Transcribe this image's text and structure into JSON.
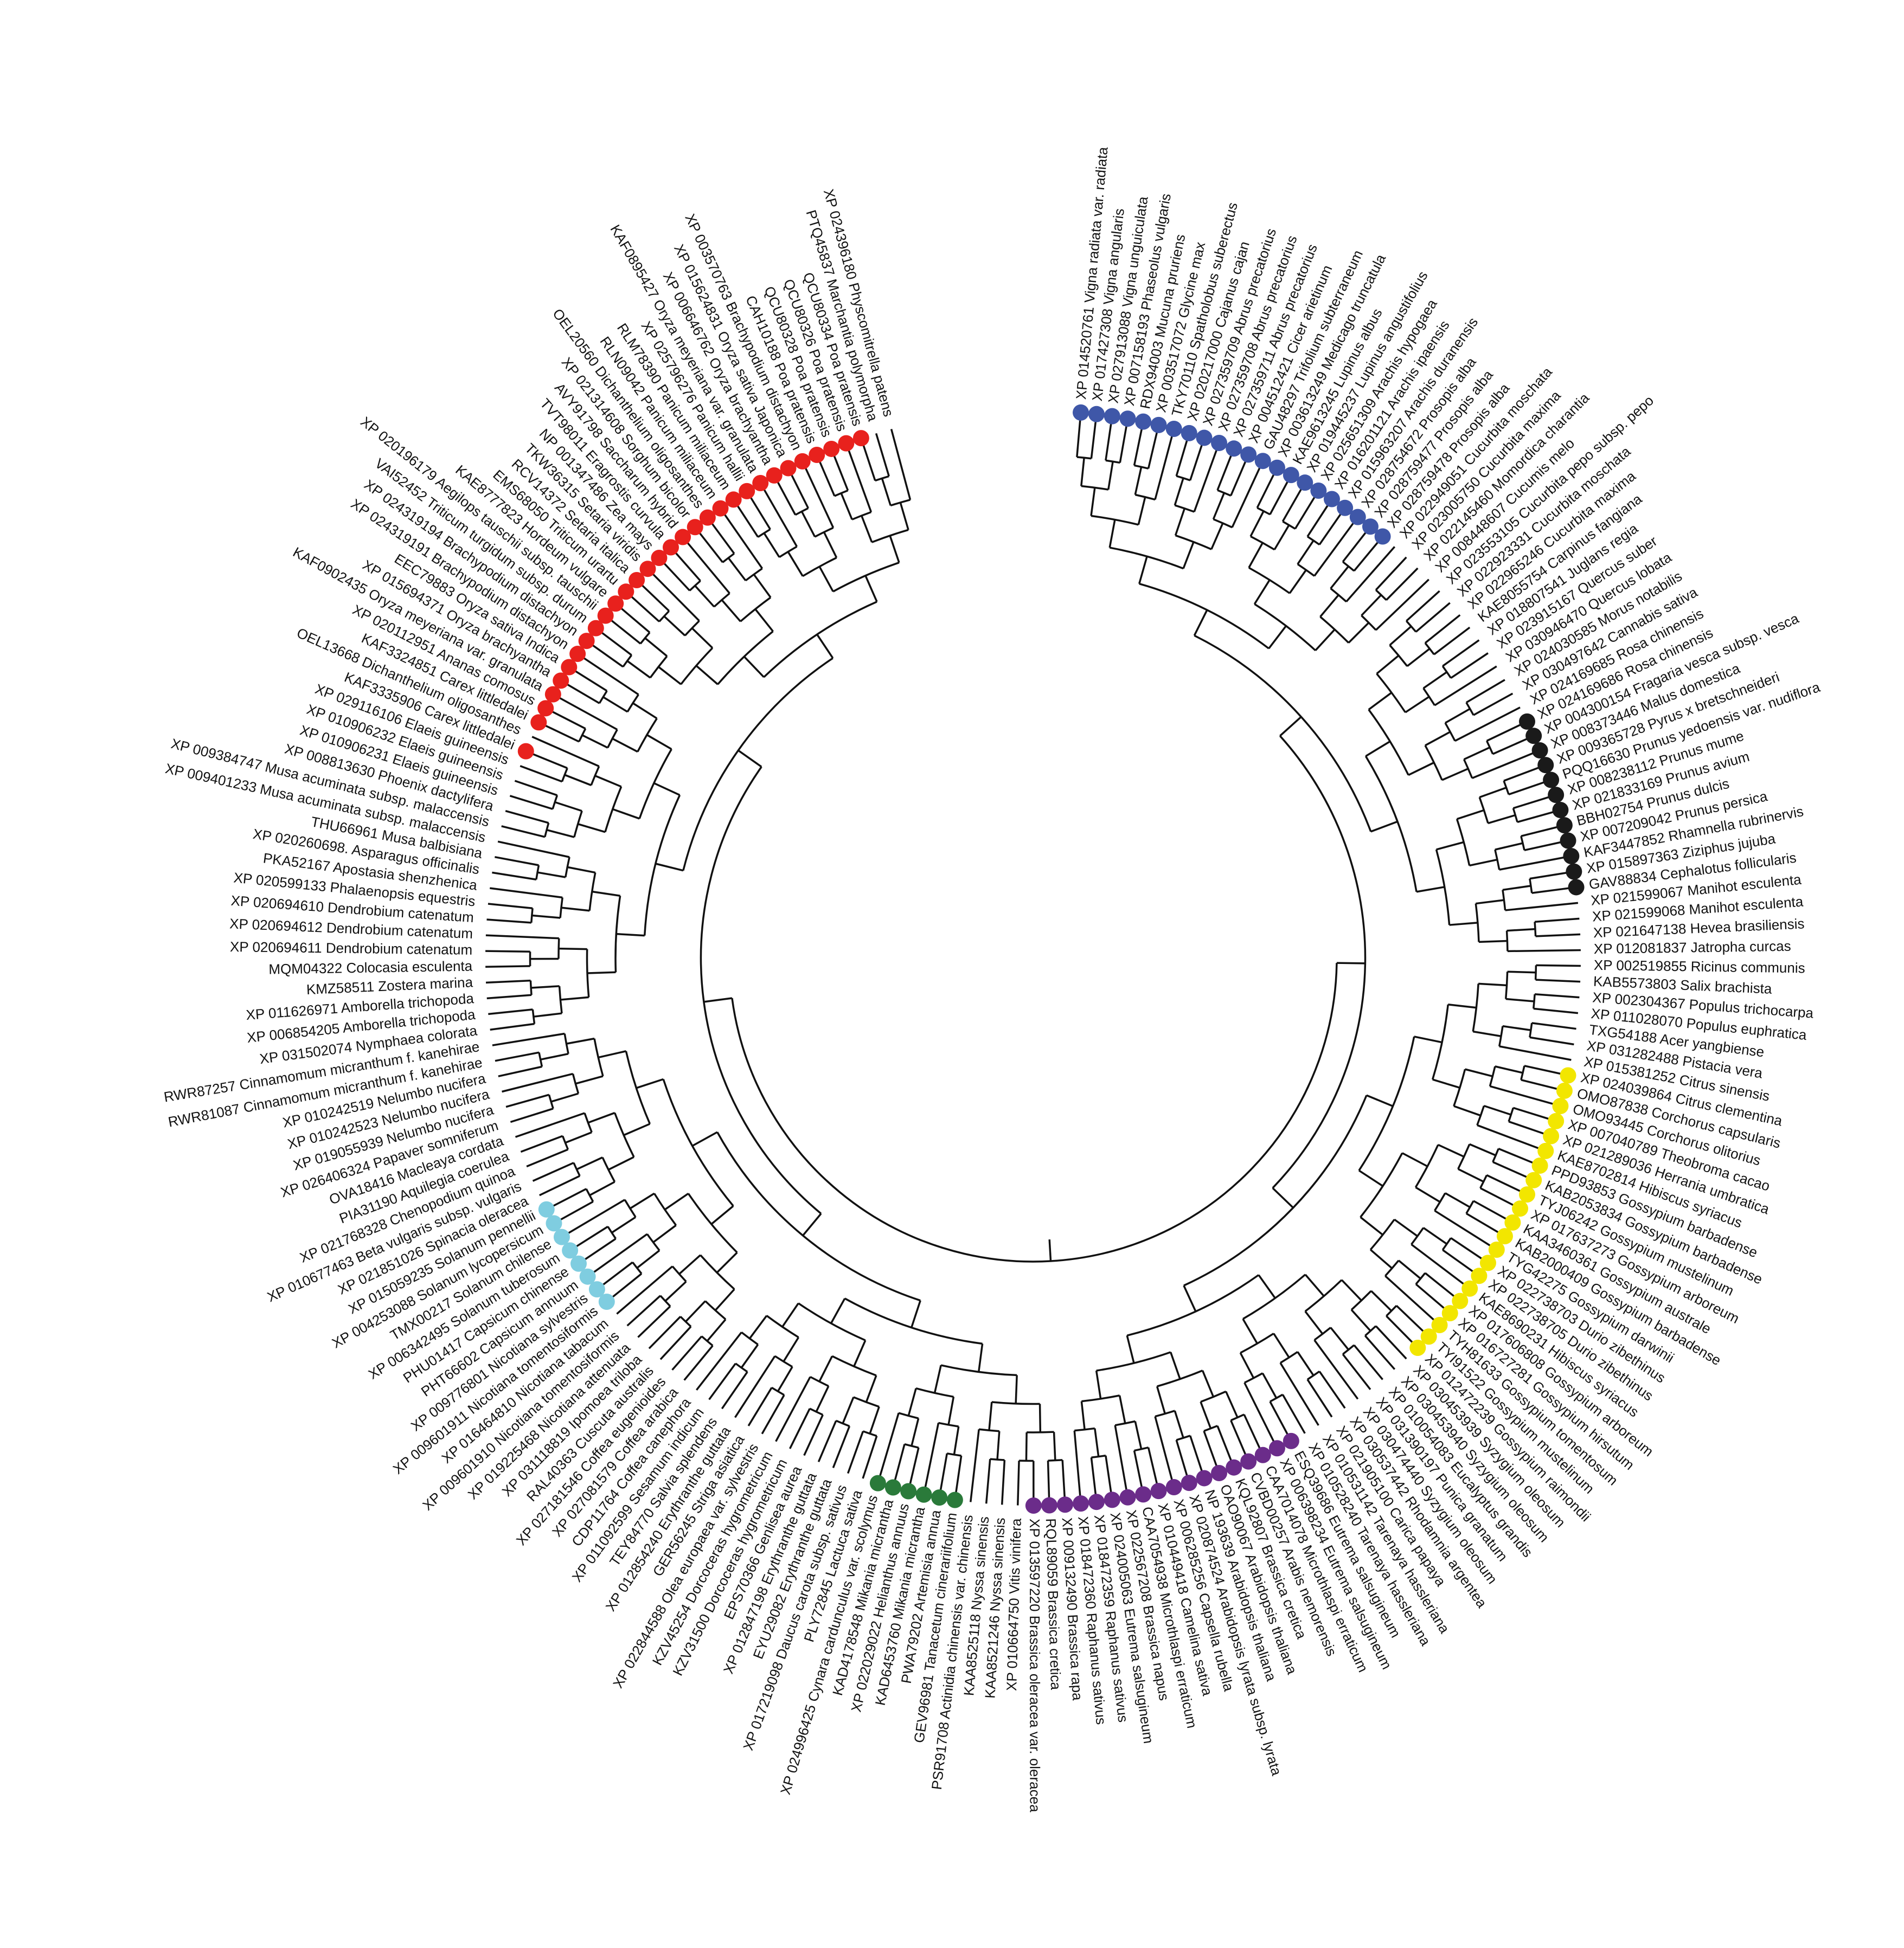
{
  "leaves": [
    {
      "label": "XP 014520761 Vigna radiata var. radiata",
      "dot": "#3f57a8"
    },
    {
      "label": "XP 017427308 Vigna angularis",
      "dot": "#3f57a8"
    },
    {
      "label": "XP 027913088 Vigna unguiculata",
      "dot": "#3f57a8"
    },
    {
      "label": "XP 007158193 Phaseolus vulgaris",
      "dot": "#3f57a8"
    },
    {
      "label": "RDX94003 Mucuna pruriens",
      "dot": "#3f57a8"
    },
    {
      "label": "XP 003517072 Glycine max",
      "dot": "#3f57a8"
    },
    {
      "label": "TKY70110 Spatholobus suberectus",
      "dot": "#3f57a8"
    },
    {
      "label": "XP 020217000 Cajanus cajan",
      "dot": "#3f57a8"
    },
    {
      "label": "XP 027359709 Abrus precatorius",
      "dot": "#3f57a8"
    },
    {
      "label": "XP 027359708 Abrus precatorius",
      "dot": "#3f57a8"
    },
    {
      "label": "XP 027359711 Abrus precatorius",
      "dot": "#3f57a8"
    },
    {
      "label": "XP 004512421 Cicer arietinum",
      "dot": "#3f57a8"
    },
    {
      "label": "GAU48297 Trifolium subterraneum",
      "dot": "#3f57a8"
    },
    {
      "label": "XP 003613249 Medicago truncatula",
      "dot": "#3f57a8"
    },
    {
      "label": "KAE9613245 Lupinus albus",
      "dot": "#3f57a8"
    },
    {
      "label": "XP 019445237 Lupinus angustifolius",
      "dot": "#3f57a8"
    },
    {
      "label": "XP 025651309 Arachis hypogaea",
      "dot": "#3f57a8"
    },
    {
      "label": "XP 016201121 Arachis ipaensis",
      "dot": "#3f57a8"
    },
    {
      "label": "XP 015963207 Arachis duranensis",
      "dot": "#3f57a8"
    },
    {
      "label": "XP 028754672 Prosopis alba",
      "dot": "#3f57a8"
    },
    {
      "label": "XP 028759477 Prosopis alba",
      "dot": "#3f57a8"
    },
    {
      "label": "XP 028759478 Prosopis alba",
      "dot": "#3f57a8"
    },
    {
      "label": "XP 022949051 Cucurbita moschata"
    },
    {
      "label": "XP 023005750 Cucurbita maxima"
    },
    {
      "label": "XP 022145460 Momordica charantia"
    },
    {
      "label": "XP 008448607 Cucumis melo"
    },
    {
      "label": "XP 023553105 Cucurbita pepo subsp. pepo"
    },
    {
      "label": "XP 022923331 Cucurbita moschata"
    },
    {
      "label": "XP 022965246 Cucurbita maxima"
    },
    {
      "label": "KAE8055754 Carpinus fangiana"
    },
    {
      "label": "XP 018807541 Juglans regia"
    },
    {
      "label": "XP 023915167 Quercus suber"
    },
    {
      "label": "XP 030946470 Quercus lobata"
    },
    {
      "label": "XP 024030585 Morus notabilis"
    },
    {
      "label": "XP 030497642 Cannabis sativa"
    },
    {
      "label": "XP 024169685 Rosa chinensis"
    },
    {
      "label": "XP 024169686 Rosa chinensis",
      "dot": "#1a1a1a"
    },
    {
      "label": "XP 004300154 Fragaria vesca subsp. vesca",
      "dot": "#1a1a1a"
    },
    {
      "label": "XP 008373446 Malus domestica",
      "dot": "#1a1a1a"
    },
    {
      "label": "XP 009365728 Pyrus x bretschneideri",
      "dot": "#1a1a1a"
    },
    {
      "label": "PQQ16630 Prunus yedoensis var. nudiflora",
      "dot": "#1a1a1a"
    },
    {
      "label": "XP 008238112 Prunus mume",
      "dot": "#1a1a1a"
    },
    {
      "label": "XP 021833169 Prunus avium",
      "dot": "#1a1a1a"
    },
    {
      "label": "BBH02754 Prunus dulcis",
      "dot": "#1a1a1a"
    },
    {
      "label": "XP 007209042 Prunus persica",
      "dot": "#1a1a1a"
    },
    {
      "label": "KAF3447852 Rhamnella rubrinervis",
      "dot": "#1a1a1a"
    },
    {
      "label": "XP 015897363 Ziziphus jujuba",
      "dot": "#1a1a1a"
    },
    {
      "label": "GAV88834 Cephalotus follicularis",
      "dot": "#1a1a1a"
    },
    {
      "label": "XP 021599067 Manihot esculenta"
    },
    {
      "label": "XP 021599068 Manihot esculenta"
    },
    {
      "label": "XP 021647138 Hevea brasiliensis"
    },
    {
      "label": "XP 012081837 Jatropha curcas"
    },
    {
      "label": "XP 002519855 Ricinus communis"
    },
    {
      "label": "KAB5573803 Salix brachista"
    },
    {
      "label": "XP 002304367 Populus trichocarpa"
    },
    {
      "label": "XP 011028070 Populus euphratica"
    },
    {
      "label": "TXG54188 Acer yangbiense"
    },
    {
      "label": "XP 031282488 Pistacia vera"
    },
    {
      "label": "XP 015381252 Citrus sinensis"
    },
    {
      "label": "XP 024039864 Citrus clementina",
      "dot": "#f2e600"
    },
    {
      "label": "OMO87838 Corchorus capsularis",
      "dot": "#f2e600"
    },
    {
      "label": "OMO93445 Corchorus olitorius",
      "dot": "#f2e600"
    },
    {
      "label": "XP 007040789 Theobroma cacao",
      "dot": "#f2e600"
    },
    {
      "label": "XP 021289036 Herrania umbratica",
      "dot": "#f2e600"
    },
    {
      "label": "KAE8702814 Hibiscus syriacus",
      "dot": "#f2e600"
    },
    {
      "label": "PPD93853 Gossypium barbadense",
      "dot": "#f2e600"
    },
    {
      "label": "KAB2053834 Gossypium barbadense",
      "dot": "#f2e600"
    },
    {
      "label": "TYJ06242 Gossypium mustelinum",
      "dot": "#f2e600"
    },
    {
      "label": "XP 017637273 Gossypium arboreum",
      "dot": "#f2e600"
    },
    {
      "label": "KAA3460361 Gossypium australe",
      "dot": "#f2e600"
    },
    {
      "label": "KAB2000409 Gossypium barbadense",
      "dot": "#f2e600"
    },
    {
      "label": "TYG42275 Gossypium darwinii",
      "dot": "#f2e600"
    },
    {
      "label": "XP 022738703 Durio zibethinus",
      "dot": "#f2e600"
    },
    {
      "label": "XP 022738705 Durio zibethinus",
      "dot": "#f2e600"
    },
    {
      "label": "KAE8690231 Hibiscus syriacus",
      "dot": "#f2e600"
    },
    {
      "label": "XP 017606808 Gossypium arboreum",
      "dot": "#f2e600"
    },
    {
      "label": "XP 016727281 Gossypium hirsutum",
      "dot": "#f2e600"
    },
    {
      "label": "TYH81633 Gossypium tomentosum",
      "dot": "#f2e600"
    },
    {
      "label": "TYI91522 Gossypium mustelinum",
      "dot": "#f2e600"
    },
    {
      "label": "XP 012472239 Gossypium raimondii",
      "dot": "#f2e600"
    },
    {
      "label": "XP 030453939 Syzygium oleosum"
    },
    {
      "label": "XP 030453940 Syzygium oleosum"
    },
    {
      "label": "XP 010054083 Eucalyptus grandis"
    },
    {
      "label": "XP 031390197 Punica granatum"
    },
    {
      "label": "XP 030474440 Syzygium oleosum"
    },
    {
      "label": "XP 030537442 Rhodamnia argentea"
    },
    {
      "label": "XP 021905100 Carica papaya"
    },
    {
      "label": "XP 010531142 Tarenaya hassleriana"
    },
    {
      "label": "XP 010528240 Tarenaya hassleriana"
    },
    {
      "label": "ESQ39686 Eutrema salsugineum",
      "dot": "#6b2c8a"
    },
    {
      "label": "XP 006398234 Eutrema salsugineum",
      "dot": "#6b2c8a"
    },
    {
      "label": "CAA7014078 Microthlaspi erraticum",
      "dot": "#6b2c8a"
    },
    {
      "label": "CVBD00257 Arabis nemorensis",
      "dot": "#6b2c8a"
    },
    {
      "label": "KQL92807 Brassica cretica",
      "dot": "#6b2c8a"
    },
    {
      "label": "OAO90067 Arabidopsis thaliana",
      "dot": "#6b2c8a"
    },
    {
      "label": "NP 193639 Arabidopsis thaliana",
      "dot": "#6b2c8a"
    },
    {
      "label": "XP 020874524 Arabidopsis lyrata subsp. lyrata",
      "dot": "#6b2c8a"
    },
    {
      "label": "XP 006285256 Capsella rubella",
      "dot": "#6b2c8a"
    },
    {
      "label": "XP 010449418 Camelina sativa",
      "dot": "#6b2c8a"
    },
    {
      "label": "CAA7054938 Microthlaspi erraticum",
      "dot": "#6b2c8a"
    },
    {
      "label": "XP 022567208 Brassica napus",
      "dot": "#6b2c8a"
    },
    {
      "label": "XP 024005063 Eutrema salsugineum",
      "dot": "#6b2c8a"
    },
    {
      "label": "XP 018472359 Raphanus sativus",
      "dot": "#6b2c8a"
    },
    {
      "label": "XP 018472360 Raphanus sativus",
      "dot": "#6b2c8a"
    },
    {
      "label": "XP 009132490 Brassica rapa",
      "dot": "#6b2c8a"
    },
    {
      "label": "RQL89059 Brassica cretica",
      "dot": "#6b2c8a"
    },
    {
      "label": "XP 013597220 Brassica oleracea var. oleracea",
      "dot": "#6b2c8a"
    },
    {
      "label": "XP 010664750 Vitis vinifera"
    },
    {
      "label": "KAA8521246 Nyssa sinensis"
    },
    {
      "label": "KAA8525118 Nyssa sinensis"
    },
    {
      "label": "PSR91708 Actinidia chinensis var. chinensis"
    },
    {
      "label": "GEV96981 Tanacetum cinerariifolium",
      "dot": "#2a7a3a"
    },
    {
      "label": "PWA79202 Artemisia annua",
      "dot": "#2a7a3a"
    },
    {
      "label": "KAD6453760 Mikania micrantha",
      "dot": "#2a7a3a"
    },
    {
      "label": "XP 022029022 Helianthus annuus",
      "dot": "#2a7a3a"
    },
    {
      "label": "KAD4178548 Mikania micrantha",
      "dot": "#2a7a3a"
    },
    {
      "label": "XP 024996425 Cynara cardunculus var. scolymus",
      "dot": "#2a7a3a"
    },
    {
      "label": "PLY72845 Lactuca sativa"
    },
    {
      "label": "XP 017219098 Daucus carota subsp. sativus"
    },
    {
      "label": "EYU29082 Erythranthe guttata"
    },
    {
      "label": "XP 012847198 Erythranthe guttata"
    },
    {
      "label": "EPS70366 Genlisea aurea"
    },
    {
      "label": "KZV31500 Dorcoceras hygrometricum"
    },
    {
      "label": "KZV45254 Dorcoceras hygrometricum"
    },
    {
      "label": "XP 022844588 Olea europaea var. sylvestris"
    },
    {
      "label": "GER56245 Striga asiatica"
    },
    {
      "label": "XP 012854240 Erythranthe guttata"
    },
    {
      "label": "TEY84770 Salvia splendens"
    },
    {
      "label": "XP 011092599 Sesamum indicum"
    },
    {
      "label": "CDP11764 Coffea canephora"
    },
    {
      "label": "XP 027081579 Coffea arabica"
    },
    {
      "label": "XP 027181546 Coffea eugenioides"
    },
    {
      "label": "RAL40363 Cuscuta australis"
    },
    {
      "label": "XP 031118819 Ipomoea triloba"
    },
    {
      "label": "XP 019225468 Nicotiana attenuata"
    },
    {
      "label": "XP 009601910 Nicotiana tomentosiformis"
    },
    {
      "label": "XP 016464810 Nicotiana tabacum"
    },
    {
      "label": "XP 009601911 Nicotiana tomentosiformis",
      "dot": "#7fcde0"
    },
    {
      "label": "XP 009776801 Nicotiana sylvestris",
      "dot": "#7fcde0"
    },
    {
      "label": "PHT66602 Capsicum annuum",
      "dot": "#7fcde0"
    },
    {
      "label": "PHU01417 Capsicum chinense",
      "dot": "#7fcde0"
    },
    {
      "label": "XP 006342495 Solanum tuberosum",
      "dot": "#7fcde0"
    },
    {
      "label": "TMX00217 Solanum chilense",
      "dot": "#7fcde0"
    },
    {
      "label": "XP 004253088 Solanum lycopersicum",
      "dot": "#7fcde0"
    },
    {
      "label": "XP 015059235 Solanum pennellii",
      "dot": "#7fcde0"
    },
    {
      "label": "XP 021851026 Spinacia oleracea"
    },
    {
      "label": "XP 010677463 Beta vulgaris subsp. vulgaris"
    },
    {
      "label": "XP 021768328 Chenopodium quinoa"
    },
    {
      "label": "PIA31190 Aquilegia coerulea"
    },
    {
      "label": "OVA18416 Macleaya cordata"
    },
    {
      "label": "XP 026406324 Papaver somniferum"
    },
    {
      "label": "XP 019055939 Nelumbo nucifera"
    },
    {
      "label": "XP 010242523 Nelumbo nucifera"
    },
    {
      "label": "XP 010242519 Nelumbo nucifera"
    },
    {
      "label": "RWR81087 Cinnamomum micranthum f. kanehirae"
    },
    {
      "label": "RWR87257 Cinnamomum micranthum f. kanehirae"
    },
    {
      "label": "XP 031502074 Nymphaea colorata"
    },
    {
      "label": "XP 006854205 Amborella trichopoda"
    },
    {
      "label": "XP 011626971 Amborella trichopoda"
    },
    {
      "label": "KMZ58511 Zostera marina"
    },
    {
      "label": "MQM04322 Colocasia esculenta"
    },
    {
      "label": "XP 020694611 Dendrobium catenatum"
    },
    {
      "label": "XP 020694612 Dendrobium catenatum"
    },
    {
      "label": "XP 020694610 Dendrobium catenatum"
    },
    {
      "label": "XP 020599133 Phalaenopsis equestris"
    },
    {
      "label": "PKA52167 Apostasia shenzhenica"
    },
    {
      "label": "XP 020260698. Asparagus officinalis"
    },
    {
      "label": "THU66961 Musa balbisiana"
    },
    {
      "label": "XP 009401233 Musa acuminata subsp. malaccensis"
    },
    {
      "label": "XP 009384747 Musa acuminata subsp. malaccensis"
    },
    {
      "label": "XP 008813630 Phoenix dactylifera"
    },
    {
      "label": "XP 010906231 Elaeis guineensis"
    },
    {
      "label": "XP 010906232 Elaeis guineensis"
    },
    {
      "label": "XP 029116106 Elaeis guineensis"
    },
    {
      "label": "KAF3335906 Carex littledalei",
      "dot": "#e8211d"
    },
    {
      "label": "OEL13668 Dichanthelium oligosanthes"
    },
    {
      "label": "KAF3324851 Carex littledalei",
      "dot": "#e8211d"
    },
    {
      "label": "XP 020112951 Ananas comosus",
      "dot": "#e8211d"
    },
    {
      "label": "KAF0902435 Oryza meyeriana var. granulata",
      "dot": "#e8211d"
    },
    {
      "label": "XP 015694371 Oryza brachyantha",
      "dot": "#e8211d"
    },
    {
      "label": "EEC79883 Oryza sativa Indica",
      "dot": "#e8211d"
    },
    {
      "label": "XP 024319191 Brachypodium distachyon",
      "dot": "#e8211d"
    },
    {
      "label": "XP 024319194 Brachypodium distachyon",
      "dot": "#e8211d"
    },
    {
      "label": "VAI52452 Triticum turgidum subsp. durum",
      "dot": "#e8211d"
    },
    {
      "label": "XP 020196179 Aegilops tauschii subsp. tauschii",
      "dot": "#e8211d"
    },
    {
      "label": "KAE8777823 Hordeum vulgare",
      "dot": "#e8211d"
    },
    {
      "label": "EMS68050 Triticum urartu",
      "dot": "#e8211d"
    },
    {
      "label": "RCV14372 Setaria italica",
      "dot": "#e8211d"
    },
    {
      "label": "TKW36315 Setaria viridis",
      "dot": "#e8211d"
    },
    {
      "label": "NP 001347486 Zea mays",
      "dot": "#e8211d"
    },
    {
      "label": "TVT98011 Eragrostis curvula",
      "dot": "#e8211d"
    },
    {
      "label": "AVY91798 Saccharum hybrid",
      "dot": "#e8211d"
    },
    {
      "label": "XP 021314608 Sorghum bicolor",
      "dot": "#e8211d"
    },
    {
      "label": "OEL20560 Dichanthelium oligosanthes",
      "dot": "#e8211d"
    },
    {
      "label": "RLN09042 Panicum miliaceum",
      "dot": "#e8211d"
    },
    {
      "label": "RLM78390 Panicum miliaceum",
      "dot": "#e8211d"
    },
    {
      "label": "XP 025796276 Panicum hallii",
      "dot": "#e8211d"
    },
    {
      "label": "KAF0895427 Oryza meyeriana var. granulata",
      "dot": "#e8211d"
    },
    {
      "label": "XP 006646762 Oryza brachyantha",
      "dot": "#e8211d"
    },
    {
      "label": "XP 015624831 Oryza sativa Japonica",
      "dot": "#e8211d"
    },
    {
      "label": "XP 003570763 Brachypodium distachyon",
      "dot": "#e8211d"
    },
    {
      "label": "CAH10188 Poa pratensis",
      "dot": "#e8211d"
    },
    {
      "label": "QCU80328 Poa pratensis",
      "dot": "#e8211d"
    },
    {
      "label": "QCU80326 Poa pratensis",
      "dot": "#e8211d"
    },
    {
      "label": "QCU80334 Poa pratensis",
      "dot": "#e8211d"
    },
    {
      "label": "PTQ45837 Marchantia polymorpha"
    },
    {
      "label": "XP 024396180 Physcomitrella patens"
    }
  ]
}
